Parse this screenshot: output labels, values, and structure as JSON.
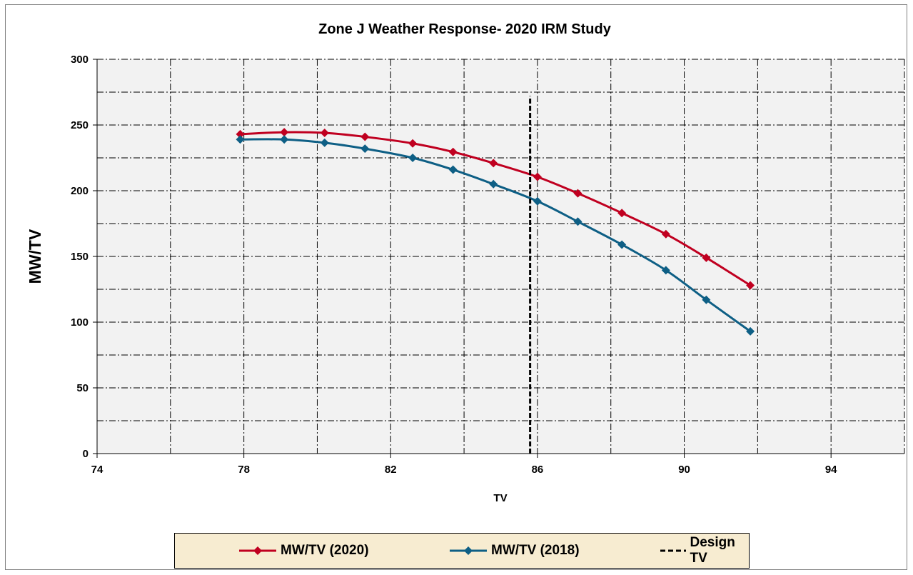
{
  "chart_data": {
    "type": "line",
    "title": "Zone J Weather Response- 2020 IRM Study",
    "xlabel": "TV",
    "ylabel": "MW/TV",
    "xlim": [
      74,
      96
    ],
    "ylim": [
      0,
      300
    ],
    "x_ticks": [
      74,
      78,
      82,
      86,
      90,
      94
    ],
    "x_tick_labels": [
      "74",
      "78",
      "82",
      "86",
      "90",
      "94"
    ],
    "y_ticks": [
      0,
      50,
      100,
      150,
      200,
      250,
      300
    ],
    "y_tick_labels": [
      "0",
      "50",
      "100",
      "150",
      "200",
      "250",
      "300"
    ],
    "grid": true,
    "legend_position": "bottom",
    "series": [
      {
        "name": "MW/TV (2020)",
        "color": "#c00020",
        "marker": "diamond",
        "x": [
          77.9,
          79.1,
          80.2,
          81.3,
          82.6,
          83.7,
          84.8,
          86.0,
          87.1,
          88.3,
          89.5,
          90.6,
          91.8
        ],
        "y": [
          243,
          244.5,
          244,
          241,
          236,
          229.5,
          221,
          210.5,
          198,
          183,
          167,
          149,
          128
        ]
      },
      {
        "name": "MW/TV (2018)",
        "color": "#0e5f85",
        "marker": "diamond",
        "x": [
          77.9,
          79.1,
          80.2,
          81.3,
          82.6,
          83.7,
          84.8,
          86.0,
          87.1,
          88.3,
          89.5,
          90.6,
          91.8
        ],
        "y": [
          239,
          239,
          236.5,
          232,
          225,
          216,
          205,
          192,
          176.5,
          159,
          139.5,
          117,
          93
        ]
      },
      {
        "name": "Design TV",
        "color": "#000000",
        "style": "dashed",
        "x": [
          85.8,
          85.8
        ],
        "y": [
          0,
          272
        ]
      }
    ]
  }
}
